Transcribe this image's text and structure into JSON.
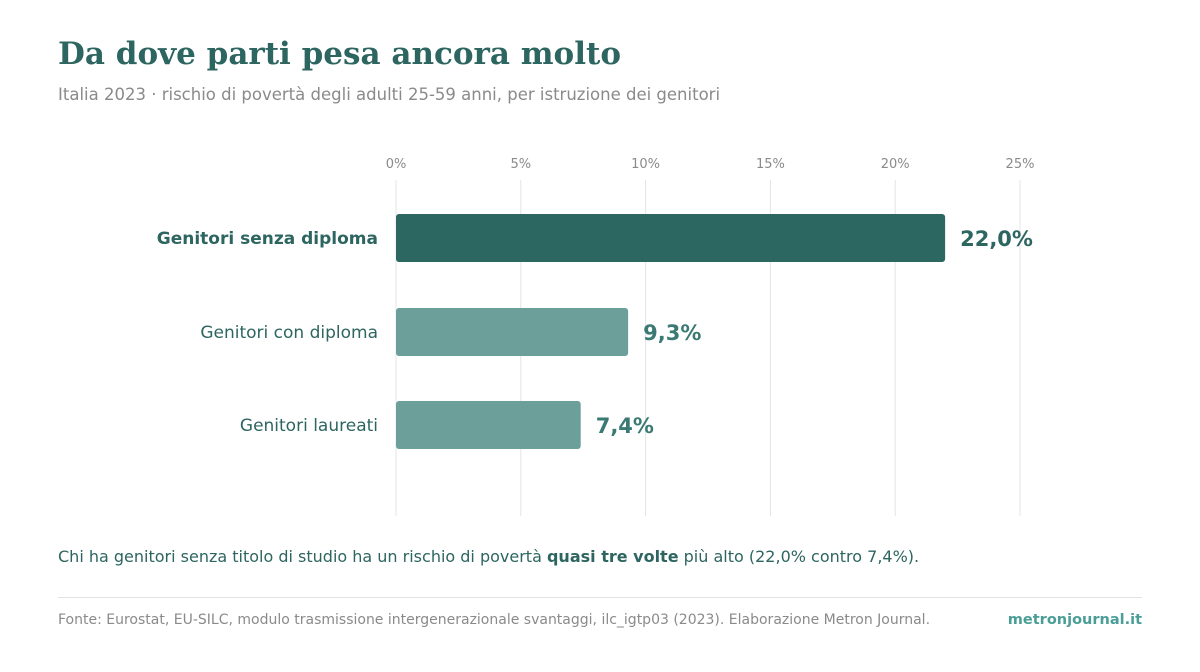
{
  "header": {
    "title": "Da dove parti pesa ancora molto",
    "subtitle": "Italia 2023 · rischio di povertà degli adulti 25-59 anni, per istruzione dei genitori"
  },
  "chart_data": {
    "type": "bar",
    "orientation": "horizontal",
    "categories": [
      "Genitori senza diploma",
      "Genitori con diploma",
      "Genitori laureati"
    ],
    "values": [
      22.0,
      9.3,
      7.4
    ],
    "value_labels": [
      "22,0%",
      "9,3%",
      "7,4%"
    ],
    "xlim": [
      0,
      25
    ],
    "x_ticks": [
      0,
      5,
      10,
      15,
      20,
      25
    ],
    "x_tick_labels": [
      "0%",
      "5%",
      "10%",
      "15%",
      "20%",
      "25%"
    ],
    "x_axis_position": "top",
    "grid": true,
    "highlighted_category": "Genitori senza diploma",
    "colors": {
      "highlight": "#2d6761",
      "normal": "#6c9f9a",
      "label_highlight": "#2d6560",
      "label_normal": "#3a7a73"
    }
  },
  "note": {
    "before": "Chi ha genitori senza titolo di studio ha un rischio di povertà ",
    "bold": "quasi tre volte",
    "after": " più alto (22,0% contro 7,4%)."
  },
  "footer": {
    "source": "Fonte: Eurostat, EU-SILC, modulo trasmissione intergenerazionale svantaggi, ilc_igtp03 (2023). Elaborazione Metron Journal.",
    "brand": "metronjournal.it"
  }
}
